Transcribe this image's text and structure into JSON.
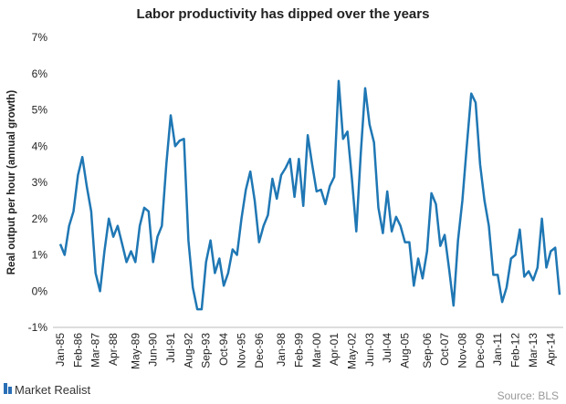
{
  "chart_data": {
    "type": "line",
    "title": "Labor productivity has dipped over the years",
    "y_label": "Real output per hour (annual growth)",
    "source": "Source: BLS",
    "brand": "Market Realist",
    "color": "#1f77b4",
    "ylim": [
      -1,
      7
    ],
    "yticks": [
      {
        "value": -1,
        "label": "-1%"
      },
      {
        "value": 0,
        "label": "0%"
      },
      {
        "value": 1,
        "label": "1%"
      },
      {
        "value": 2,
        "label": "2%"
      },
      {
        "value": 3,
        "label": "3%"
      },
      {
        "value": 4,
        "label": "4%"
      },
      {
        "value": 5,
        "label": "5%"
      },
      {
        "value": 6,
        "label": "6%"
      },
      {
        "value": 7,
        "label": "7%"
      }
    ],
    "categories": [
      "Jan-85",
      null,
      null,
      null,
      "Feb-86",
      null,
      null,
      null,
      "Mar-87",
      null,
      null,
      null,
      "Apr-88",
      null,
      null,
      null,
      null,
      "May-89",
      null,
      null,
      null,
      "Jun-90",
      null,
      null,
      null,
      "Jul-91",
      null,
      null,
      null,
      "Aug-92",
      null,
      null,
      null,
      "Sep-93",
      null,
      null,
      null,
      "Oct-94",
      null,
      null,
      null,
      "Nov-95",
      null,
      null,
      null,
      "Dec-96",
      null,
      null,
      null,
      null,
      "Jan-98",
      null,
      null,
      null,
      "Feb-99",
      null,
      null,
      null,
      "Mar-00",
      null,
      null,
      null,
      "Apr-01",
      null,
      null,
      null,
      "May-02",
      null,
      null,
      null,
      "Jun-03",
      null,
      null,
      null,
      "Jul-04",
      null,
      null,
      null,
      "Aug-05",
      null,
      null,
      null,
      null,
      "Sep-06",
      null,
      null,
      null,
      "Oct-07",
      null,
      null,
      null,
      "Nov-08",
      null,
      null,
      null,
      "Dec-09",
      null,
      null,
      null,
      "Jan-11",
      null,
      null,
      null,
      "Feb-12",
      null,
      null,
      null,
      "Mar-13",
      null,
      null,
      null,
      "Apr-14",
      null,
      null
    ],
    "values": [
      1.3,
      1.0,
      1.8,
      2.2,
      3.2,
      3.7,
      2.9,
      2.2,
      0.5,
      0.0,
      1.1,
      2.0,
      1.5,
      1.8,
      1.3,
      0.8,
      1.1,
      0.8,
      1.8,
      2.3,
      2.2,
      0.8,
      1.5,
      1.8,
      3.5,
      4.85,
      4.0,
      4.15,
      4.2,
      1.4,
      0.1,
      -0.5,
      -0.5,
      0.8,
      1.4,
      0.5,
      0.9,
      0.15,
      0.5,
      1.15,
      1.0,
      2.0,
      2.8,
      3.3,
      2.5,
      1.35,
      1.8,
      2.1,
      3.1,
      2.55,
      3.2,
      3.4,
      3.65,
      2.6,
      3.65,
      2.35,
      4.3,
      3.5,
      2.75,
      2.8,
      2.4,
      2.9,
      3.15,
      5.8,
      4.2,
      4.4,
      3.1,
      1.65,
      3.8,
      5.6,
      4.6,
      4.1,
      2.3,
      1.6,
      2.75,
      1.65,
      2.05,
      1.8,
      1.35,
      1.35,
      0.15,
      0.9,
      0.35,
      1.1,
      2.7,
      2.4,
      1.25,
      1.55,
      0.6,
      -0.4,
      1.4,
      2.5,
      4.0,
      5.45,
      5.2,
      3.5,
      2.5,
      1.8,
      0.45,
      0.45,
      -0.3,
      0.1,
      0.9,
      1.0,
      1.7,
      0.4,
      0.55,
      0.3,
      0.65,
      2.0,
      0.65,
      1.1,
      1.2,
      -0.1
    ]
  }
}
